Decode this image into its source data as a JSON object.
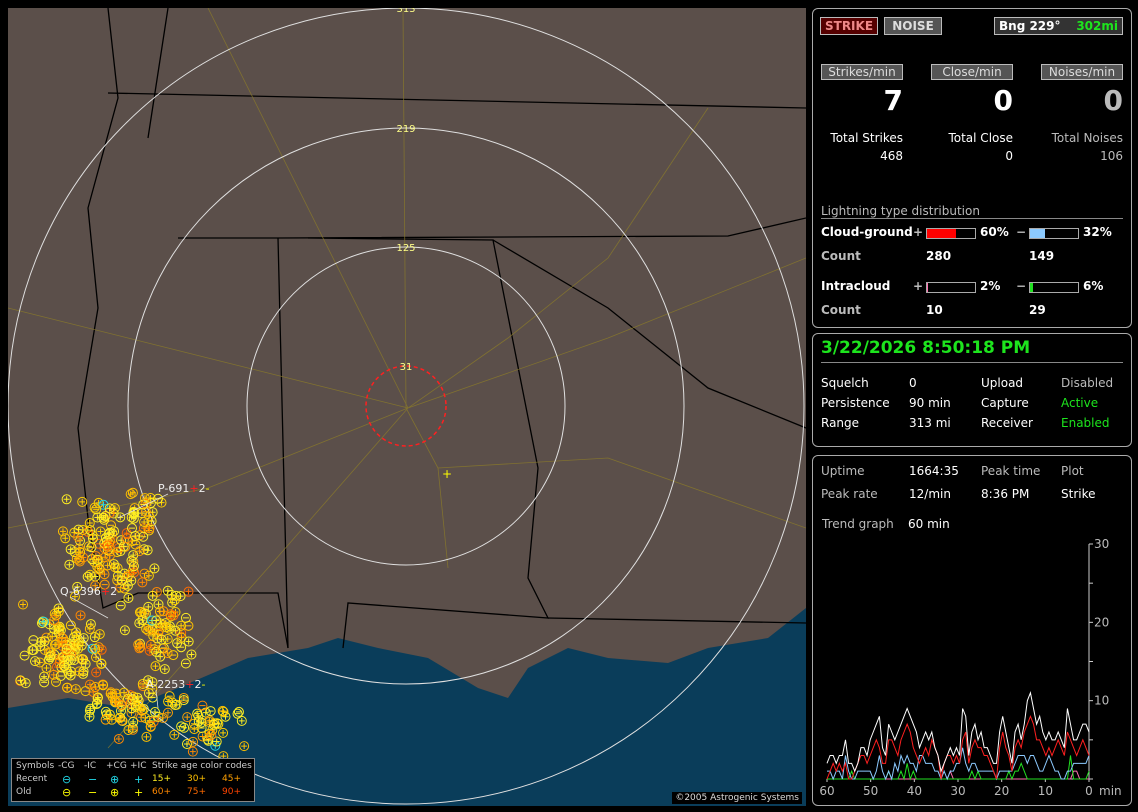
{
  "map": {
    "range_rings": [
      "313",
      "219",
      "125",
      "31"
    ],
    "cell_labels": [
      {
        "id": "P-691",
        "sign": "+",
        "count": "2",
        "tail": "-"
      },
      {
        "id": "Q-6396",
        "sign": "+",
        "count": "2",
        "tail": "-"
      },
      {
        "id": "A-2253",
        "sign": "+",
        "count": "2",
        "tail": "-"
      }
    ],
    "copyright": "©2005 Astrogenic Systems",
    "colors": {
      "land": "#5b4f4a",
      "water": "#0a3d5a",
      "rings": "#e0e0e0",
      "close_ring": "#ff2020"
    },
    "legend": {
      "symbols_label": "Symbols",
      "cols": [
        "-CG",
        "-IC",
        "+CG",
        "+IC"
      ],
      "rows": [
        {
          "label": "Recent",
          "glyphs": [
            "⊖",
            "−",
            "⊕",
            "+"
          ],
          "color": "#22d8e8"
        },
        {
          "label": "Old",
          "glyphs": [
            "⊖",
            "−",
            "⊕",
            "+"
          ],
          "color": "#ffff00"
        }
      ],
      "age_title": "Strike age color codes",
      "ages": [
        {
          "t": "15+",
          "c": "#ffee22"
        },
        {
          "t": "30+",
          "c": "#ffc000"
        },
        {
          "t": "45+",
          "c": "#ffa000"
        },
        {
          "t": "60+",
          "c": "#ff8800"
        },
        {
          "t": "75+",
          "c": "#ff6a00"
        },
        {
          "t": "90+",
          "c": "#ff4400"
        }
      ]
    }
  },
  "top": {
    "strike_btn": "STRIKE",
    "noise_btn": "NOISE",
    "bearing": "Bng 229°",
    "distance": "302mi",
    "rates": [
      {
        "label": "Strikes/min",
        "value": "7"
      },
      {
        "label": "Close/min",
        "value": "0"
      },
      {
        "label": "Noises/min",
        "value": "0"
      }
    ],
    "totals": [
      {
        "label": "Total Strikes",
        "value": "468"
      },
      {
        "label": "Total Close",
        "value": "0"
      },
      {
        "label": "Total Noises",
        "value": "106"
      }
    ],
    "dist_title": "Lightning type distribution",
    "cg": {
      "label": "Cloud-ground",
      "pos_sign": "+",
      "pos_pct": "60%",
      "pos_frac": 0.6,
      "neg_sign": "−",
      "neg_pct": "32%",
      "neg_frac": 0.32,
      "count_label": "Count",
      "pos_count": "280",
      "neg_count": "149"
    },
    "ic": {
      "label": "Intracloud",
      "pos_sign": "+",
      "pos_pct": "2%",
      "pos_frac": 0.02,
      "neg_sign": "−",
      "neg_pct": "6%",
      "neg_frac": 0.06,
      "count_label": "Count",
      "pos_count": "10",
      "neg_count": "29"
    }
  },
  "status": {
    "datetime": "3/22/2026 8:50:18 PM",
    "rows": [
      [
        "Squelch",
        "0",
        "Upload",
        "Disabled"
      ],
      [
        "Persistence",
        "90 min",
        "Capture",
        "Active"
      ],
      [
        "Range",
        "313 mi",
        "Receiver",
        "Enabled"
      ]
    ]
  },
  "stats": {
    "uptime_label": "Uptime",
    "uptime": "1664:35",
    "peak_time_label": "Peak time",
    "plot_label": "Plot",
    "peak_rate_label": "Peak rate",
    "peak_rate": "12/min",
    "peak_time": "8:36 PM",
    "plot": "Strike",
    "trend_label": "Trend graph",
    "trend_value": "60 min"
  },
  "chart_data": {
    "type": "line",
    "xlabel": "min",
    "x_ticks": [
      "60",
      "50",
      "40",
      "30",
      "20",
      "10",
      "0"
    ],
    "y_ticks": [
      "10",
      "20",
      "30"
    ],
    "xlim": [
      60,
      0
    ],
    "ylim": [
      0,
      30
    ],
    "series": [
      {
        "color": "#ffffff",
        "values": [
          2,
          3,
          3,
          2,
          3,
          3,
          5,
          2,
          2,
          1,
          2,
          4,
          4,
          3,
          5,
          6,
          7,
          8,
          4,
          3,
          7,
          6,
          5,
          6,
          7,
          8,
          9,
          8,
          7,
          6,
          4,
          5,
          6,
          5,
          6,
          4,
          3,
          1,
          2,
          3,
          4,
          3,
          4,
          3,
          9,
          8,
          3,
          6,
          7,
          5,
          6,
          4,
          4,
          3,
          2,
          2,
          6,
          8,
          6,
          4,
          2,
          6,
          7,
          5,
          7,
          10,
          11,
          9,
          7,
          8,
          6,
          5,
          6,
          5,
          5,
          6,
          5,
          4,
          9,
          7,
          5,
          5,
          6,
          7,
          7,
          6
        ]
      },
      {
        "color": "#ff2020",
        "values": [
          0,
          1,
          2,
          1,
          2,
          1,
          2,
          0,
          0,
          1,
          2,
          3,
          3,
          2,
          3,
          4,
          5,
          4,
          2,
          2,
          5,
          5,
          4,
          3,
          5,
          6,
          7,
          6,
          4,
          3,
          2,
          3,
          4,
          3,
          5,
          4,
          3,
          0,
          2,
          3,
          3,
          2,
          3,
          2,
          5,
          6,
          2,
          4,
          5,
          4,
          4,
          3,
          3,
          2,
          1,
          0,
          4,
          6,
          4,
          3,
          1,
          4,
          5,
          4,
          6,
          7,
          8,
          7,
          5,
          5,
          4,
          3,
          4,
          3,
          4,
          5,
          4,
          3,
          6,
          5,
          4,
          3,
          4,
          5,
          4,
          3
        ]
      },
      {
        "color": "#8ccaff",
        "values": [
          1,
          1,
          0,
          1,
          1,
          0,
          3,
          1,
          0,
          0,
          1,
          1,
          1,
          1,
          1,
          0,
          1,
          3,
          1,
          0,
          1,
          0,
          2,
          1,
          3,
          2,
          3,
          2,
          2,
          1,
          3,
          3,
          2,
          2,
          2,
          1,
          1,
          0,
          1,
          0,
          1,
          1,
          2,
          2,
          4,
          2,
          1,
          2,
          2,
          1,
          1,
          1,
          1,
          1,
          1,
          0,
          1,
          1,
          1,
          1,
          1,
          2,
          3,
          3,
          3,
          2,
          3,
          3,
          2,
          1,
          1,
          2,
          3,
          2,
          1,
          1,
          0,
          0,
          1,
          1,
          2,
          2,
          2,
          2,
          2,
          3
        ]
      },
      {
        "color": "#22e022",
        "values": [
          0,
          0,
          0,
          0,
          0,
          0,
          0,
          0,
          1,
          0,
          0,
          0,
          0,
          0,
          0,
          0,
          0,
          0,
          0,
          0,
          1,
          0,
          0,
          0,
          1,
          0,
          2,
          0,
          1,
          0,
          0,
          0,
          0,
          0,
          0,
          0,
          0,
          0,
          0,
          0,
          0,
          0,
          0,
          0,
          0,
          0,
          0,
          1,
          0,
          1,
          0,
          0,
          0,
          0,
          0,
          0,
          0,
          0,
          0,
          1,
          0,
          1,
          1,
          2,
          1,
          0,
          0,
          0,
          0,
          0,
          0,
          0,
          0,
          0,
          0,
          0,
          0,
          0,
          0,
          3,
          0,
          0,
          0,
          0,
          0,
          1
        ]
      },
      {
        "color": "#ff70b0",
        "values": [
          0,
          0,
          0,
          0,
          0,
          0,
          0,
          0,
          0,
          0,
          0,
          0,
          0,
          0,
          0,
          0,
          0,
          0,
          0,
          0,
          0,
          0,
          0,
          0,
          0,
          0,
          0,
          0,
          0,
          0,
          0,
          0,
          0,
          0,
          0,
          0,
          0,
          0,
          0,
          0,
          1,
          0,
          0,
          0,
          0,
          0,
          0,
          0,
          0,
          0,
          0,
          0,
          0,
          0,
          0,
          0,
          0,
          0,
          0,
          0,
          0,
          0,
          0,
          0,
          0,
          0,
          0,
          0,
          0,
          0,
          0,
          0,
          0,
          0,
          0,
          0,
          0,
          0,
          0,
          0,
          1,
          1,
          0,
          0,
          0,
          0
        ]
      }
    ]
  }
}
